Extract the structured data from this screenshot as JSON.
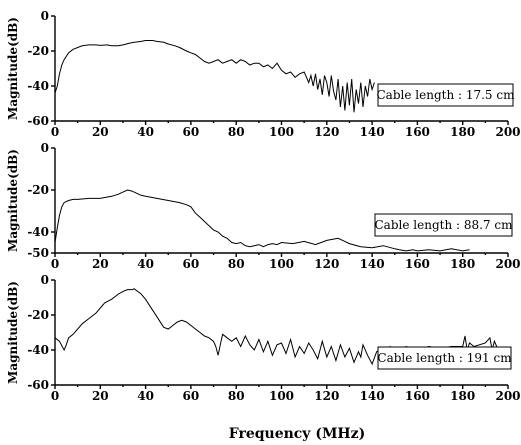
{
  "figure": {
    "xlabel": "Frequency (MHz)"
  },
  "chart_data": [
    {
      "type": "line",
      "legend": "Cable length : 17.5 cm",
      "ylabel": "Magnitude(dB)",
      "xlim": [
        0,
        200
      ],
      "ylim": [
        -60,
        0
      ],
      "xticks": [
        "0",
        "20",
        "40",
        "60",
        "80",
        "100",
        "120",
        "140",
        "160",
        "180",
        "200"
      ],
      "yticks": [
        "0",
        "-20",
        "-40",
        "-60"
      ],
      "series": [
        {
          "x": [
            0,
            1,
            2,
            3,
            4,
            5,
            6,
            8,
            10,
            12,
            15,
            18,
            20,
            23,
            25,
            28,
            30,
            33,
            35,
            38,
            40,
            43,
            45,
            48,
            50,
            53,
            55,
            58,
            60,
            62,
            64,
            66,
            68,
            70,
            72,
            74,
            76,
            78,
            80,
            82,
            84,
            86,
            88,
            90,
            92,
            94,
            96,
            98,
            100,
            102,
            104,
            106,
            108,
            110,
            112,
            113,
            114,
            115,
            116,
            117,
            118,
            119,
            120,
            121,
            122,
            123,
            124,
            125,
            126,
            127,
            128,
            129,
            130,
            131,
            132,
            133,
            134,
            135,
            136,
            137,
            138,
            139,
            140,
            141
          ],
          "y": [
            -44,
            -40,
            -33,
            -28,
            -25,
            -23,
            -21,
            -19,
            -18,
            -17,
            -16.5,
            -16.5,
            -16.8,
            -16.5,
            -17,
            -17,
            -16.5,
            -15.5,
            -15,
            -14.5,
            -14,
            -14,
            -14.5,
            -15,
            -16,
            -17,
            -18,
            -20,
            -21,
            -22,
            -24,
            -26,
            -27,
            -26,
            -25,
            -27,
            -26,
            -25,
            -27,
            -25,
            -26,
            -28,
            -27,
            -27,
            -29,
            -28,
            -30,
            -27,
            -31,
            -33,
            -32,
            -35,
            -33,
            -32,
            -38,
            -34,
            -40,
            -33,
            -42,
            -36,
            -45,
            -34,
            -38,
            -46,
            -34,
            -43,
            -48,
            -36,
            -52,
            -40,
            -54,
            -38,
            -51,
            -36,
            -55,
            -42,
            -50,
            -38,
            -52,
            -40,
            -46,
            -36,
            -42,
            -38
          ]
        }
      ]
    },
    {
      "type": "line",
      "legend": "Cable length : 88.7 cm",
      "ylabel": "Magnitude(dB)",
      "xlim": [
        0,
        200
      ],
      "ylim": [
        -50,
        0
      ],
      "xticks": [
        "0",
        "20",
        "40",
        "60",
        "80",
        "100",
        "120",
        "140",
        "160",
        "180",
        "200"
      ],
      "yticks": [
        "0",
        "-20",
        "-40",
        "-50"
      ],
      "series": [
        {
          "x": [
            0,
            1,
            2,
            3,
            4,
            5,
            6,
            8,
            10,
            15,
            20,
            25,
            28,
            30,
            32,
            34,
            36,
            38,
            40,
            45,
            50,
            55,
            58,
            60,
            62,
            64,
            66,
            68,
            70,
            72,
            74,
            76,
            78,
            80,
            82,
            84,
            86,
            88,
            90,
            92,
            94,
            96,
            98,
            100,
            105,
            110,
            115,
            120,
            125,
            128,
            130,
            135,
            140,
            145,
            150,
            152,
            155,
            158,
            160,
            165,
            170,
            175,
            180,
            183
          ],
          "y": [
            -45,
            -38,
            -32,
            -28,
            -26,
            -25.5,
            -25,
            -24.5,
            -24.5,
            -24,
            -24,
            -23,
            -22,
            -21,
            -20,
            -20.5,
            -21.5,
            -22.5,
            -23,
            -24,
            -25,
            -26,
            -27,
            -28,
            -31,
            -33,
            -35,
            -37,
            -39,
            -40,
            -42,
            -43,
            -45,
            -45.5,
            -45,
            -46.5,
            -47,
            -46.5,
            -46,
            -47,
            -46,
            -45.5,
            -46,
            -45,
            -45.5,
            -44.5,
            -46,
            -44,
            -43,
            -44.5,
            -45.5,
            -47,
            -47.5,
            -46.5,
            -48,
            -48.5,
            -49,
            -48.5,
            -49,
            -48.5,
            -49,
            -48,
            -49,
            -48.5
          ]
        }
      ]
    },
    {
      "type": "line",
      "legend": "Cable length : 191 cm",
      "ylabel": "Magnitude(dB)",
      "xlim": [
        0,
        200
      ],
      "ylim": [
        -60,
        0
      ],
      "xticks": [
        "0",
        "20",
        "40",
        "60",
        "80",
        "100",
        "120",
        "140",
        "160",
        "180",
        "200"
      ],
      "yticks": [
        "0",
        "-20",
        "-40",
        "-60"
      ],
      "series": [
        {
          "x": [
            0,
            2,
            4,
            5,
            6,
            8,
            10,
            12,
            15,
            18,
            20,
            22,
            25,
            28,
            30,
            32,
            34,
            35,
            36,
            38,
            40,
            42,
            44,
            46,
            48,
            50,
            52,
            54,
            56,
            58,
            60,
            62,
            64,
            66,
            68,
            70,
            71,
            72,
            73,
            74,
            76,
            78,
            80,
            82,
            84,
            86,
            88,
            90,
            92,
            94,
            96,
            98,
            100,
            102,
            104,
            106,
            108,
            110,
            112,
            114,
            116,
            118,
            120,
            122,
            124,
            126,
            128,
            130,
            132,
            134,
            135,
            136,
            138,
            140,
            142,
            144,
            146,
            148,
            150,
            155,
            160,
            165,
            170,
            175,
            180,
            181,
            182,
            183,
            185,
            190,
            192,
            193,
            194,
            195
          ],
          "y": [
            -33,
            -35,
            -40,
            -37,
            -33,
            -31,
            -28,
            -25,
            -22,
            -19,
            -16,
            -13,
            -11,
            -8,
            -6.5,
            -5.5,
            -5.5,
            -5,
            -6,
            -8,
            -11,
            -15,
            -19,
            -23,
            -27,
            -28,
            -26,
            -24,
            -23,
            -24,
            -26,
            -28,
            -30,
            -32,
            -33,
            -35,
            -38,
            -43,
            -37,
            -31,
            -33,
            -35,
            -33,
            -38,
            -32,
            -37,
            -40,
            -34,
            -41,
            -35,
            -43,
            -37,
            -36,
            -42,
            -34,
            -44,
            -38,
            -42,
            -36,
            -40,
            -45,
            -35,
            -44,
            -38,
            -46,
            -37,
            -44,
            -39,
            -47,
            -41,
            -44,
            -37,
            -43,
            -48,
            -41,
            -39,
            -40,
            -38,
            -42,
            -38,
            -40,
            -38,
            -39,
            -38,
            -38,
            -32,
            -40,
            -36,
            -38,
            -36,
            -33,
            -40,
            -35,
            -38
          ]
        }
      ]
    }
  ]
}
